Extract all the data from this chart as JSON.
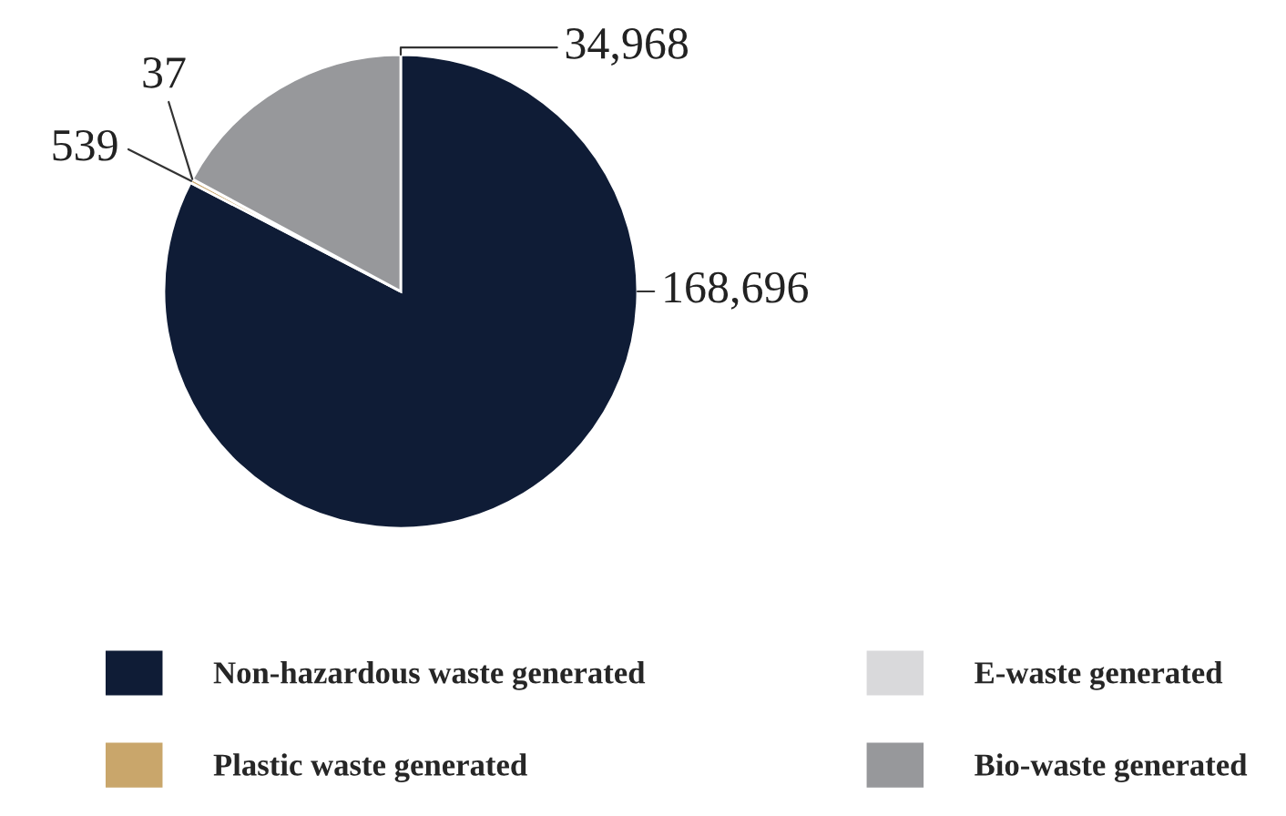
{
  "chart_data": {
    "type": "pie",
    "categories": [
      "Non-hazardous waste generated",
      "Plastic waste generated",
      "E-waste generated",
      "Bio-waste generated"
    ],
    "values": [
      168696,
      539,
      37,
      34968
    ],
    "value_labels": [
      "168,696",
      "539",
      "37",
      "34,968"
    ],
    "colors": [
      "#0f1c36",
      "#c9a66b",
      "#d9d9db",
      "#97989b"
    ],
    "legend": "bottom"
  }
}
